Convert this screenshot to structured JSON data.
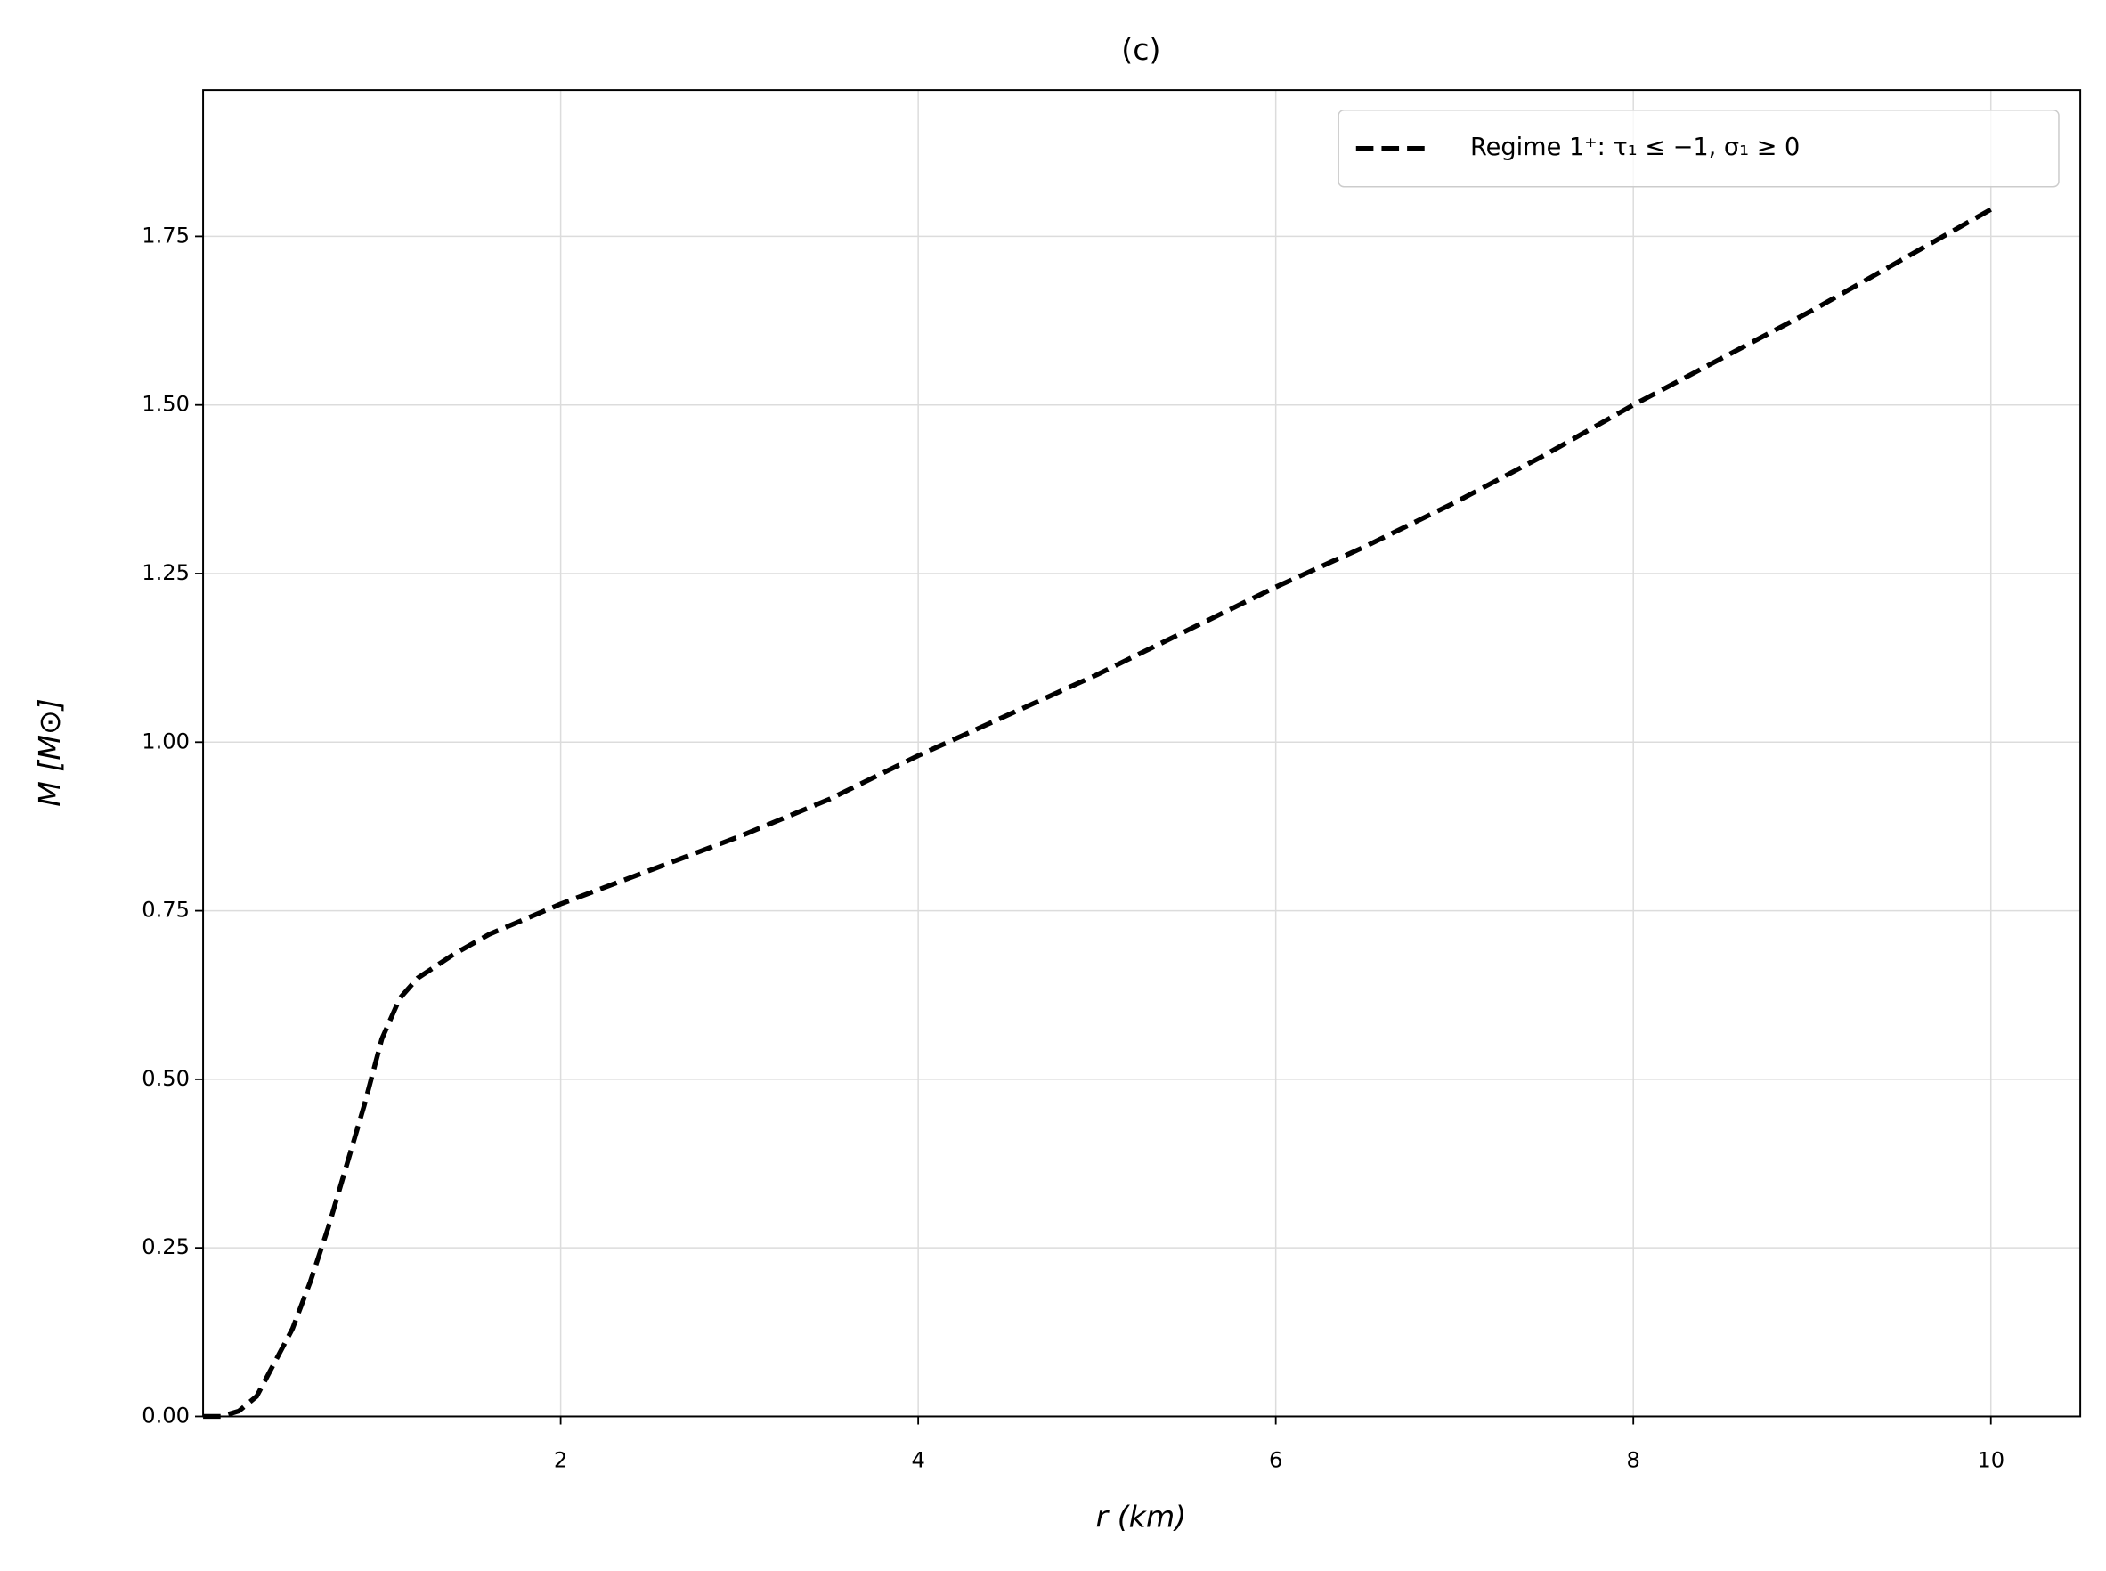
{
  "chart_data": {
    "type": "line",
    "title": "(c)",
    "x_label": "r (km)",
    "y_label": "M [M⊙]",
    "x": [
      0.0,
      0.1,
      0.2,
      0.3,
      0.4,
      0.5,
      0.6,
      0.7,
      0.8,
      0.9,
      1.0,
      1.1,
      1.2,
      1.4,
      1.6,
      2.0,
      2.5,
      3.0,
      3.5,
      4.0,
      4.5,
      5.0,
      5.5,
      6.0,
      6.5,
      7.0,
      7.5,
      8.0,
      8.5,
      9.0,
      9.5,
      10.0
    ],
    "series": [
      {
        "name": "Regime 1⁺: τ₁ ≤ −1, σ₁ ≥ 0",
        "color": "#000000",
        "dashed": true,
        "values": [
          0.0,
          0.0,
          0.008,
          0.03,
          0.08,
          0.13,
          0.2,
          0.28,
          0.37,
          0.46,
          0.56,
          0.62,
          0.65,
          0.685,
          0.715,
          0.76,
          0.81,
          0.86,
          0.915,
          0.98,
          1.04,
          1.1,
          1.165,
          1.23,
          1.29,
          1.355,
          1.425,
          1.5,
          1.57,
          1.64,
          1.715,
          1.79
        ]
      }
    ],
    "xlim": [
      0,
      10.5
    ],
    "ylim": [
      0,
      1.967
    ],
    "xticks": [
      2,
      4,
      6,
      8,
      10
    ],
    "yticks": [
      {
        "value": 0,
        "label": "0.00"
      },
      {
        "value": 0.25,
        "label": "0.25"
      },
      {
        "value": 0.5,
        "label": "0.50"
      },
      {
        "value": 0.75,
        "label": "0.75"
      },
      {
        "value": 1,
        "label": "1.00"
      },
      {
        "value": 1.25,
        "label": "1.25"
      },
      {
        "value": 1.5,
        "label": "1.50"
      },
      {
        "value": 1.75,
        "label": "1.75"
      }
    ],
    "grid": true,
    "legend": "upper right"
  }
}
